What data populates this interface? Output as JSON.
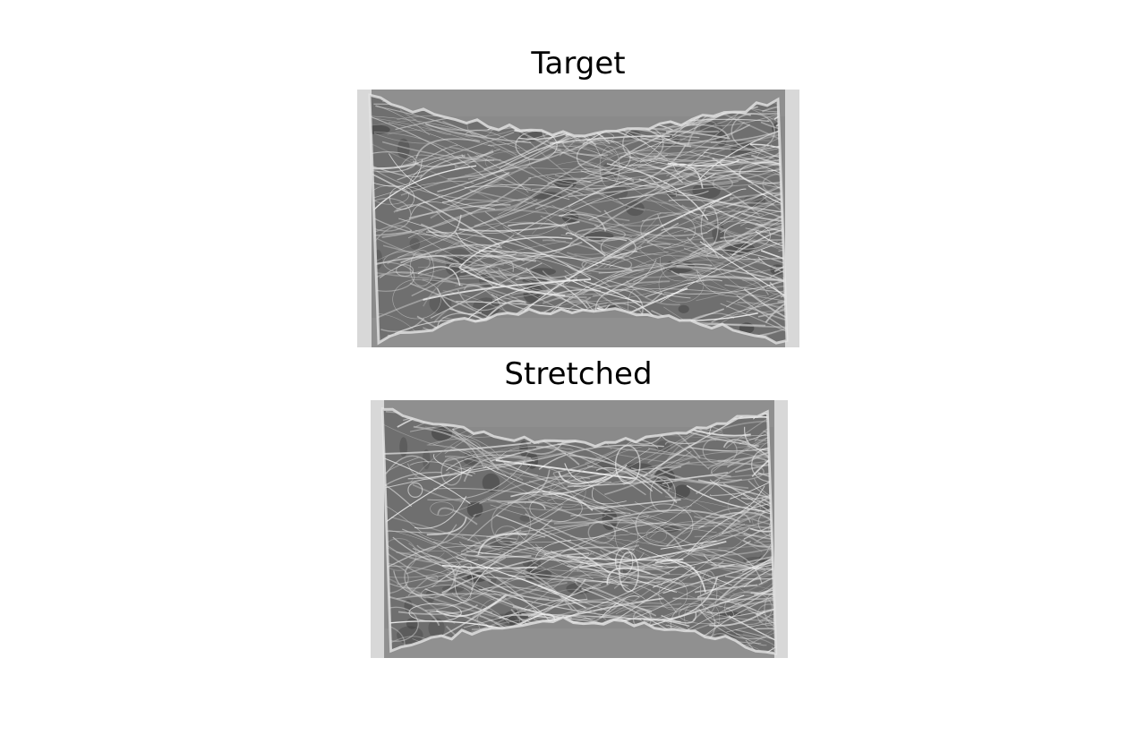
{
  "panels": [
    {
      "title": "Target"
    },
    {
      "title": "Stretched"
    }
  ]
}
